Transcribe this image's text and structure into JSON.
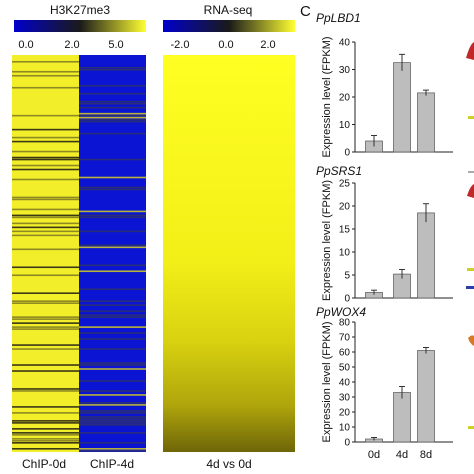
{
  "panel_letter": "C",
  "heatmap_h3k27me3": {
    "title": "H3K27me3",
    "scale_ticks": [
      "0.0",
      "2.0",
      "5.0"
    ],
    "columns": [
      "ChIP-0d",
      "ChIP-4d"
    ]
  },
  "heatmap_rnaseq": {
    "title": "RNA-seq",
    "scale_ticks": [
      "-2.0",
      "0.0",
      "2.0"
    ],
    "columns": [
      "4d vs 0d"
    ]
  },
  "colors": {
    "low": "#0000cc",
    "mid": "#111111",
    "high": "#ffff33",
    "bar": "#bdbdbd"
  },
  "ylabel": "Expression level (FPKM)",
  "chart_data": [
    {
      "type": "bar",
      "title": "PpLBD1",
      "categories": [
        "0d",
        "4d",
        "8d"
      ],
      "values": [
        4,
        32.5,
        21.5
      ],
      "errors": [
        2,
        3,
        1
      ],
      "ylim": [
        0,
        40
      ],
      "yticks": [
        0,
        10,
        20,
        30,
        40
      ],
      "ylabel": "Expression level (FPKM)",
      "xticklabels_shown": false
    },
    {
      "type": "bar",
      "title": "PpSRS1",
      "categories": [
        "0d",
        "4d",
        "8d"
      ],
      "values": [
        1.2,
        5.2,
        18.5
      ],
      "errors": [
        0.5,
        1,
        2
      ],
      "ylim": [
        0,
        25
      ],
      "yticks": [
        0,
        5,
        10,
        15,
        20,
        25
      ],
      "ylabel": "Expression level (FPKM)",
      "xticklabels_shown": false
    },
    {
      "type": "bar",
      "title": "PpWOX4",
      "categories": [
        "0d",
        "4d",
        "8d"
      ],
      "values": [
        2,
        33,
        61
      ],
      "errors": [
        1,
        4,
        2
      ],
      "ylim": [
        0,
        80
      ],
      "yticks": [
        0,
        10,
        20,
        30,
        40,
        50,
        60,
        70,
        80
      ],
      "ylabel": "Expression level (FPKM)",
      "xticklabels_shown": true
    }
  ]
}
